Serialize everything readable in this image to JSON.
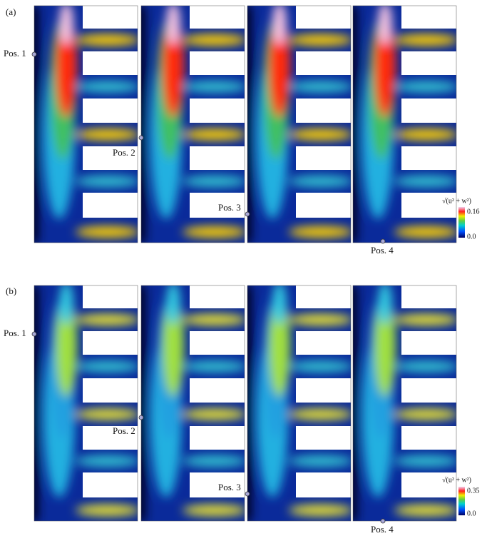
{
  "panel_a": {
    "label": "(a)",
    "positions": [
      "Pos. 1",
      "Pos. 2",
      "Pos. 3",
      "Pos. 4"
    ],
    "colorbar": {
      "quantity": "√(u² + w²)",
      "max": "0.16",
      "min": "0.0"
    }
  },
  "panel_b": {
    "label": "(b)",
    "positions": [
      "Pos. 1",
      "Pos. 2",
      "Pos. 3",
      "Pos. 4"
    ],
    "colorbar": {
      "quantity": "√(u² + w²)",
      "max": "0.35",
      "min": "0.0"
    }
  }
}
